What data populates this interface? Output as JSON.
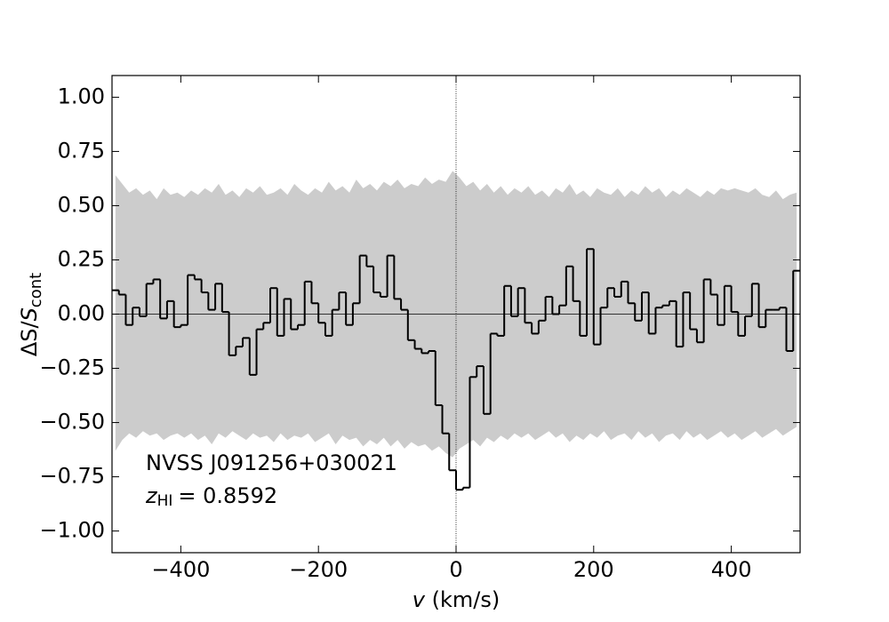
{
  "chart_data": {
    "type": "step",
    "xlabel": {
      "var": "v",
      "unit": "(km/s)"
    },
    "ylabel": {
      "main": "ΔS/",
      "var": "S",
      "sub": "cont"
    },
    "annotation": {
      "name": "NVSS J091256+030021",
      "var": "z",
      "sub": "HI",
      "text": "= 0.8592"
    },
    "xlim": [
      -500,
      500
    ],
    "ylim": [
      -1.1,
      1.1
    ],
    "xticks": [
      {
        "value": -400,
        "label": "−400"
      },
      {
        "value": -200,
        "label": "−200"
      },
      0,
      200,
      400
    ],
    "yticks": [
      {
        "value": -1.0,
        "label": "−1.00"
      },
      {
        "value": -0.75,
        "label": "−0.75"
      },
      {
        "value": -0.5,
        "label": "−0.50"
      },
      {
        "value": -0.25,
        "label": "−0.25"
      },
      {
        "value": 0,
        "label": "0.00"
      },
      {
        "value": 0.25,
        "label": "0.25"
      },
      {
        "value": 0.5,
        "label": "0.50"
      },
      {
        "value": 0.75,
        "label": "0.75"
      },
      {
        "value": 1.0,
        "label": "1.00"
      }
    ],
    "hline": 0,
    "vline": 0,
    "x": [
      -495,
      -485,
      -475,
      -465,
      -455,
      -445,
      -435,
      -425,
      -415,
      -405,
      -395,
      -385,
      -375,
      -365,
      -355,
      -345,
      -335,
      -325,
      -315,
      -305,
      -295,
      -285,
      -275,
      -265,
      -255,
      -245,
      -235,
      -225,
      -215,
      -205,
      -195,
      -185,
      -175,
      -165,
      -155,
      -145,
      -135,
      -125,
      -115,
      -105,
      -95,
      -85,
      -75,
      -65,
      -55,
      -45,
      -35,
      -25,
      -15,
      -5,
      5,
      15,
      25,
      35,
      45,
      55,
      65,
      75,
      85,
      95,
      105,
      115,
      125,
      135,
      145,
      155,
      165,
      175,
      185,
      195,
      205,
      215,
      225,
      235,
      245,
      255,
      265,
      275,
      285,
      295,
      305,
      315,
      325,
      335,
      345,
      355,
      365,
      375,
      385,
      395,
      405,
      415,
      425,
      435,
      445,
      455,
      465,
      475,
      485,
      495
    ],
    "series": [
      {
        "color": "#000000",
        "values": [
          0.11,
          0.09,
          -0.05,
          0.03,
          -0.01,
          0.14,
          0.16,
          -0.02,
          0.06,
          -0.06,
          -0.05,
          0.18,
          0.16,
          0.1,
          0.02,
          0.14,
          0.01,
          -0.19,
          -0.15,
          -0.11,
          -0.28,
          -0.07,
          -0.04,
          0.12,
          -0.1,
          0.07,
          -0.07,
          -0.05,
          0.15,
          0.05,
          -0.04,
          -0.1,
          0.02,
          0.1,
          -0.05,
          0.05,
          0.27,
          0.22,
          0.1,
          0.08,
          0.27,
          0.07,
          0.02,
          -0.12,
          -0.16,
          -0.18,
          -0.17,
          -0.42,
          -0.55,
          -0.72,
          -0.81,
          -0.8,
          -0.29,
          -0.24,
          -0.46,
          -0.09,
          -0.1,
          0.13,
          -0.01,
          0.12,
          -0.04,
          -0.09,
          -0.03,
          0.08,
          0.0,
          0.04,
          0.22,
          0.06,
          -0.1,
          0.3,
          -0.14,
          0.03,
          0.12,
          0.08,
          0.15,
          0.05,
          -0.03,
          0.1,
          -0.09,
          0.03,
          0.04,
          0.06,
          -0.15,
          0.1,
          -0.07,
          -0.13,
          0.16,
          0.09,
          -0.05,
          0.13,
          0.01,
          -0.1,
          -0.01,
          0.14,
          -0.06,
          0.02,
          0.02,
          0.03,
          -0.17,
          0.2
        ]
      }
    ],
    "band": {
      "color": "#cccccc",
      "upper": [
        0.64,
        0.6,
        0.56,
        0.58,
        0.55,
        0.57,
        0.53,
        0.58,
        0.55,
        0.56,
        0.54,
        0.57,
        0.55,
        0.58,
        0.56,
        0.6,
        0.55,
        0.57,
        0.54,
        0.58,
        0.56,
        0.59,
        0.55,
        0.56,
        0.58,
        0.55,
        0.6,
        0.57,
        0.55,
        0.58,
        0.56,
        0.61,
        0.57,
        0.59,
        0.56,
        0.62,
        0.58,
        0.6,
        0.57,
        0.61,
        0.59,
        0.62,
        0.58,
        0.6,
        0.59,
        0.63,
        0.6,
        0.62,
        0.61,
        0.66,
        0.63,
        0.59,
        0.61,
        0.57,
        0.6,
        0.56,
        0.59,
        0.55,
        0.58,
        0.56,
        0.59,
        0.55,
        0.57,
        0.54,
        0.58,
        0.56,
        0.6,
        0.55,
        0.57,
        0.54,
        0.58,
        0.56,
        0.55,
        0.58,
        0.54,
        0.57,
        0.55,
        0.59,
        0.56,
        0.58,
        0.54,
        0.57,
        0.55,
        0.58,
        0.56,
        0.54,
        0.57,
        0.55,
        0.58,
        0.57,
        0.58,
        0.57,
        0.56,
        0.58,
        0.55,
        0.54,
        0.57,
        0.53,
        0.55,
        0.56
      ],
      "lower": [
        -0.63,
        -0.58,
        -0.55,
        -0.57,
        -0.54,
        -0.56,
        -0.55,
        -0.58,
        -0.56,
        -0.55,
        -0.57,
        -0.55,
        -0.58,
        -0.56,
        -0.6,
        -0.55,
        -0.57,
        -0.54,
        -0.56,
        -0.58,
        -0.55,
        -0.57,
        -0.56,
        -0.59,
        -0.55,
        -0.58,
        -0.56,
        -0.57,
        -0.55,
        -0.59,
        -0.57,
        -0.55,
        -0.6,
        -0.56,
        -0.58,
        -0.57,
        -0.61,
        -0.58,
        -0.6,
        -0.57,
        -0.61,
        -0.58,
        -0.62,
        -0.59,
        -0.61,
        -0.6,
        -0.63,
        -0.61,
        -0.64,
        -0.66,
        -0.62,
        -0.6,
        -0.58,
        -0.61,
        -0.57,
        -0.59,
        -0.56,
        -0.58,
        -0.55,
        -0.57,
        -0.55,
        -0.58,
        -0.56,
        -0.54,
        -0.57,
        -0.55,
        -0.59,
        -0.56,
        -0.58,
        -0.55,
        -0.57,
        -0.54,
        -0.58,
        -0.56,
        -0.55,
        -0.58,
        -0.54,
        -0.57,
        -0.55,
        -0.59,
        -0.56,
        -0.55,
        -0.58,
        -0.54,
        -0.57,
        -0.55,
        -0.58,
        -0.56,
        -0.54,
        -0.57,
        -0.55,
        -0.58,
        -0.56,
        -0.54,
        -0.57,
        -0.55,
        -0.53,
        -0.56,
        -0.54,
        -0.52
      ]
    }
  }
}
